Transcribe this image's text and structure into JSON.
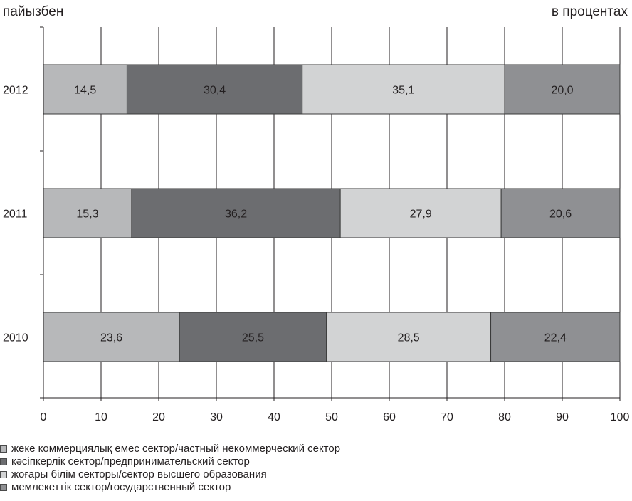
{
  "header": {
    "left_label": "пайызбен",
    "right_label": "в процентах"
  },
  "colors": {
    "series": [
      "#b7b8ba",
      "#6c6d70",
      "#d2d3d4",
      "#8f9093"
    ],
    "grid": "#231f20",
    "text": "#231f20"
  },
  "chart_data": {
    "type": "bar",
    "orientation": "horizontal",
    "stacked": true,
    "categories": [
      "2012",
      "2011",
      "2010"
    ],
    "series": [
      {
        "name": "жеке коммерциялық емес сектор/частный некоммерческий сектор",
        "values": [
          14.5,
          15.3,
          23.6
        ],
        "labels": [
          "14,5",
          "15,3",
          "23,6"
        ]
      },
      {
        "name": "кәсіпкерлік сектор/предпринимательский сектор",
        "values": [
          30.4,
          36.2,
          25.5
        ],
        "labels": [
          "30,4",
          "36,2",
          "25,5"
        ]
      },
      {
        "name": "жоғары білім секторы/сектор высшего образования",
        "values": [
          35.1,
          27.9,
          28.5
        ],
        "labels": [
          "35,1",
          "27,9",
          "28,5"
        ]
      },
      {
        "name": "мемлекеттік сектор/государственный сектор",
        "values": [
          20.0,
          20.6,
          22.4
        ],
        "labels": [
          "20,0",
          "20,6",
          "22,4"
        ]
      }
    ],
    "xlim": [
      0,
      100
    ],
    "xticks": [
      "0",
      "10",
      "20",
      "30",
      "40",
      "50",
      "60",
      "70",
      "80",
      "90",
      "100"
    ],
    "grid": true,
    "legend_position": "bottom-left"
  }
}
